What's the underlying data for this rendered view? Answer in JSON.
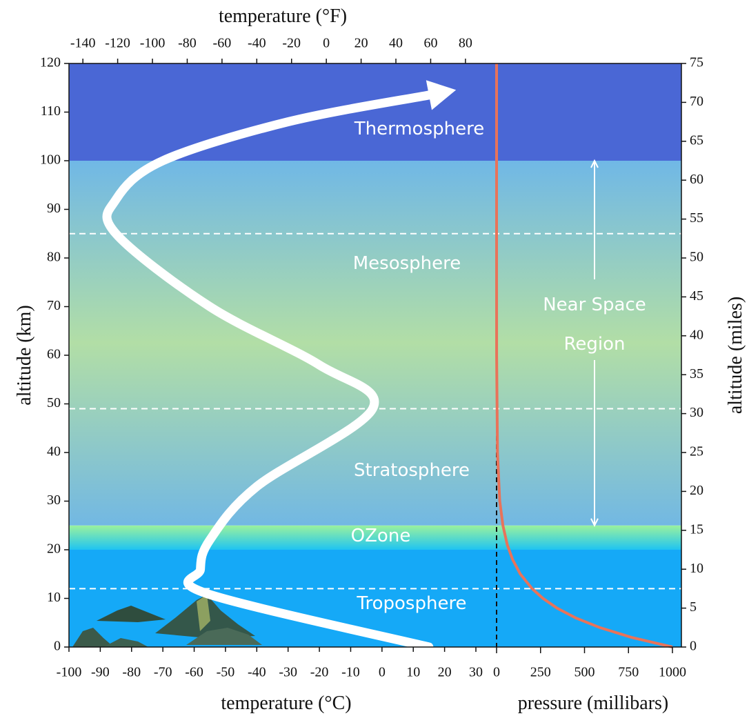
{
  "axes": {
    "altitude_km": {
      "title": "altitude (km)",
      "lim": [
        0,
        120
      ],
      "ticks": [
        0,
        10,
        20,
        30,
        40,
        50,
        60,
        70,
        80,
        90,
        100,
        110,
        120
      ]
    },
    "altitude_miles": {
      "title": "altitude (miles)",
      "lim": [
        0,
        75
      ],
      "ticks": [
        0,
        5,
        10,
        15,
        20,
        25,
        30,
        35,
        40,
        45,
        50,
        55,
        60,
        65,
        70,
        75
      ]
    },
    "temperature_c": {
      "title": "temperature (°C)",
      "lim": [
        -100,
        30
      ],
      "ticks": [
        -100,
        -90,
        -80,
        -70,
        -60,
        -50,
        -40,
        -30,
        -20,
        -10,
        0,
        10,
        20,
        30
      ]
    },
    "temperature_f": {
      "title": "temperature (°F)",
      "lim": [
        -148,
        86
      ],
      "ticks": [
        -140,
        -120,
        -100,
        -80,
        -60,
        -40,
        -20,
        0,
        20,
        40,
        60,
        80
      ]
    },
    "pressure": {
      "title": "pressure (millibars)",
      "lim": [
        0,
        1000
      ],
      "ticks": [
        0,
        250,
        500,
        750,
        1000
      ]
    }
  },
  "bands": [
    {
      "from": 0,
      "to": 20,
      "colors": [
        "#15a9f7",
        "#15a9f7"
      ]
    },
    {
      "from": 20,
      "to": 25,
      "colors": [
        "#1fc4f2",
        "#9af29e"
      ]
    },
    {
      "from": 25,
      "to": 100,
      "colors": [
        "#72b8e3",
        "#b2dea6",
        "#70b8e6"
      ]
    },
    {
      "from": 100,
      "to": 120,
      "colors": [
        "#4a67d5",
        "#4a67d5"
      ]
    }
  ],
  "boundaries": [
    12,
    49,
    85
  ],
  "layers": [
    "Thermosphere",
    "Mesosphere",
    "Stratosphere",
    "OZone",
    "Troposphere"
  ],
  "near_space": {
    "label": [
      "Near Space",
      "Region"
    ],
    "from": 25,
    "to": 100
  },
  "temperature_profile": {
    "altitude": [
      0,
      11,
      16,
      22,
      33,
      49,
      58,
      70,
      85,
      92,
      100,
      108,
      113.5
    ],
    "temperature_c": [
      15,
      -56,
      -58,
      -55,
      -40,
      -3,
      -20,
      -55,
      -85,
      -85,
      -70,
      -30,
      15
    ]
  },
  "pressure_profile": {
    "altitude": [
      0,
      2,
      4,
      6,
      8,
      10,
      12,
      15,
      18,
      21,
      25,
      30,
      40,
      60,
      80,
      100,
      120
    ],
    "pressure": [
      1000,
      766,
      587,
      449,
      344,
      264,
      202,
      135,
      91,
      61,
      36,
      18,
      5,
      0.3,
      0,
      0,
      0
    ]
  }
}
